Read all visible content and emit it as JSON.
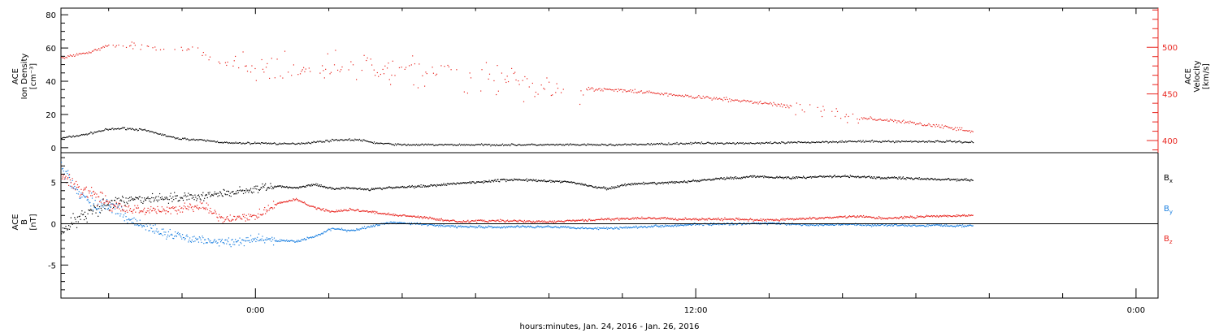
{
  "page": {
    "x_axis_title": "hours:minutes, Jan. 24, 2016 - Jan. 26, 2016",
    "x_tick_labels": [
      "0:00",
      "12:00",
      "0:00"
    ]
  },
  "colors": {
    "black": "#000000",
    "red": "#e8241e",
    "blue": "#1a7fe0"
  },
  "chart_data": [
    {
      "type": "scatter",
      "panel": "plasma",
      "x_unit": "hours from Jan. 24, 2016 0:00",
      "x_range": [
        18.7,
        48.6
      ],
      "data_end_x": 43.55,
      "left_axis": {
        "label_lines": [
          "ACE",
          "Ion Density",
          "[cm⁻³]"
        ],
        "ylim": [
          -3,
          84
        ],
        "major_ticks": [
          0,
          20,
          40,
          60,
          80
        ],
        "tick_labels": [
          "0",
          "20",
          "40",
          "60",
          "80"
        ]
      },
      "right_axis": {
        "label_lines": [
          "ACE",
          "Velocity",
          "[km/s]"
        ],
        "ylim": [
          387,
          542
        ],
        "major_ticks": [
          400,
          450,
          500
        ],
        "tick_labels": [
          "400",
          "450",
          "500"
        ]
      },
      "series": [
        {
          "axis": "left",
          "color": "black",
          "x": [
            18.7,
            19.3,
            19.9,
            20.4,
            20.9,
            21.3,
            21.8,
            22.4,
            22.9,
            23.3,
            23.8,
            24.3,
            24.8,
            25.3,
            25.8,
            26.2,
            26.8,
            27.3,
            28.0,
            29.0,
            30.0,
            31.0,
            32.0,
            33.0,
            34.0,
            35.0,
            36.0,
            37.0,
            38.0,
            39.0,
            40.0,
            41.0,
            42.0,
            43.0,
            43.55
          ],
          "y": [
            6,
            8,
            11,
            12,
            11,
            9,
            6,
            5,
            4,
            3,
            3,
            3,
            2.5,
            3,
            4,
            5,
            5,
            3,
            2,
            2,
            2,
            2,
            2,
            2,
            2,
            2.5,
            3,
            3,
            3,
            3.5,
            4,
            4,
            4,
            4,
            3.5
          ]
        },
        {
          "axis": "right",
          "color": "red",
          "x": [
            18.7,
            19.3,
            20.0,
            20.6,
            21.2,
            21.8,
            22.4,
            23.0,
            23.4,
            24.0,
            24.6,
            25.2,
            25.8,
            26.4,
            27.0,
            27.6,
            28.2,
            28.8,
            29.4,
            30.0,
            30.6,
            31.2,
            31.8,
            32.5,
            33.0,
            33.5,
            34.0,
            35.0,
            36.0,
            37.0,
            38.0,
            39.0,
            40.0,
            41.0,
            42.0,
            43.0,
            43.55
          ],
          "y": [
            489,
            494,
            502,
            503,
            500,
            497,
            496,
            484,
            480,
            477,
            474,
            476,
            478,
            480,
            481,
            477,
            476,
            473,
            471,
            470,
            467,
            463,
            460,
            459,
            456,
            455,
            454,
            451,
            447,
            444,
            440,
            435,
            427,
            423,
            419,
            414,
            410
          ]
        }
      ]
    },
    {
      "type": "scatter",
      "panel": "magnetic field",
      "x_unit": "hours from Jan. 24, 2016 0:00",
      "x_range": [
        18.7,
        48.6
      ],
      "data_end_x": 43.55,
      "left_axis": {
        "label_lines": [
          "ACE",
          "B",
          "[nT]"
        ],
        "ylim": [
          -9,
          8.6
        ],
        "major_ticks": [
          -5,
          0,
          5
        ],
        "tick_labels": [
          "-5",
          "0",
          "5"
        ]
      },
      "zero_line": true,
      "legend_position": "right",
      "series": [
        {
          "name": "Bx",
          "name_base": "B",
          "name_sub": "x",
          "color": "black",
          "x": [
            18.7,
            19.1,
            19.6,
            20.1,
            20.6,
            21.1,
            21.6,
            22.1,
            22.6,
            23.1,
            23.6,
            24.1,
            24.6,
            25.1,
            25.6,
            26.1,
            26.6,
            27.1,
            27.6,
            28.1,
            28.6,
            29.1,
            29.6,
            30.1,
            30.6,
            31.1,
            31.6,
            32.1,
            32.6,
            33.1,
            33.6,
            34.1,
            34.6,
            35.1,
            35.6,
            36.1,
            36.6,
            37.1,
            37.6,
            38.1,
            38.6,
            39.1,
            39.6,
            40.1,
            40.6,
            41.1,
            41.6,
            42.1,
            42.6,
            43.1,
            43.55
          ],
          "y": [
            -1,
            0.5,
            1.5,
            2.5,
            3.0,
            3.1,
            3.2,
            3.3,
            3.4,
            3.7,
            4.0,
            4.3,
            4.6,
            4.4,
            4.8,
            4.3,
            4.4,
            4.2,
            4.4,
            4.5,
            4.6,
            4.8,
            5.0,
            5.1,
            5.3,
            5.4,
            5.3,
            5.2,
            5.1,
            4.6,
            4.3,
            4.8,
            4.9,
            5.0,
            5.1,
            5.3,
            5.5,
            5.6,
            5.8,
            5.7,
            5.6,
            5.7,
            5.8,
            5.8,
            5.7,
            5.6,
            5.6,
            5.5,
            5.4,
            5.4,
            5.3
          ]
        },
        {
          "name": "By",
          "name_base": "B",
          "name_sub": "y",
          "color": "blue",
          "x": [
            18.7,
            19.1,
            19.6,
            20.1,
            20.6,
            21.1,
            21.6,
            22.1,
            22.6,
            23.1,
            23.6,
            24.1,
            24.6,
            25.1,
            25.6,
            26.1,
            26.6,
            27.1,
            27.6,
            28.1,
            28.6,
            29.1,
            29.6,
            30.1,
            30.6,
            31.1,
            31.6,
            32.1,
            32.6,
            33.1,
            33.6,
            34.1,
            34.6,
            35.1,
            35.6,
            36.1,
            36.6,
            37.1,
            37.6,
            38.1,
            38.6,
            39.1,
            39.6,
            40.1,
            40.6,
            41.1,
            41.6,
            42.1,
            42.6,
            43.1,
            43.55
          ],
          "y": [
            7,
            4,
            2.5,
            2,
            0.5,
            -0.5,
            -1.2,
            -1.6,
            -2.0,
            -2.2,
            -2.1,
            -1.8,
            -2.0,
            -2.1,
            -1.5,
            -0.5,
            -0.8,
            -0.3,
            0.2,
            0.1,
            0,
            -0.2,
            -0.3,
            -0.3,
            -0.4,
            -0.3,
            -0.3,
            -0.3,
            -0.4,
            -0.5,
            -0.5,
            -0.4,
            -0.3,
            -0.2,
            -0.1,
            0,
            0,
            0,
            0.1,
            0.1,
            0,
            -0.1,
            -0.1,
            0,
            -0.1,
            -0.1,
            -0.1,
            -0.2,
            -0.1,
            -0.2,
            -0.2
          ]
        },
        {
          "name": "Bz",
          "name_base": "B",
          "name_sub": "z",
          "color": "red",
          "x": [
            18.7,
            19.1,
            19.6,
            20.1,
            20.6,
            21.1,
            21.6,
            22.1,
            22.6,
            23.1,
            23.6,
            24.1,
            24.6,
            25.1,
            25.6,
            26.1,
            26.6,
            27.1,
            27.6,
            28.1,
            28.6,
            29.1,
            29.6,
            30.1,
            30.6,
            31.1,
            31.6,
            32.1,
            32.6,
            33.1,
            33.6,
            34.1,
            34.6,
            35.1,
            35.6,
            36.1,
            36.6,
            37.1,
            37.6,
            38.1,
            38.6,
            39.1,
            39.6,
            40.1,
            40.6,
            41.1,
            41.6,
            42.1,
            42.6,
            43.1,
            43.55
          ],
          "y": [
            6,
            4.5,
            3.5,
            2.2,
            1.8,
            1.6,
            1.7,
            2.0,
            2.2,
            0.5,
            0.8,
            1.2,
            2.5,
            3.0,
            2.0,
            1.5,
            1.8,
            1.5,
            1.2,
            1.0,
            0.8,
            0.5,
            0.3,
            0.4,
            0.4,
            0.4,
            0.3,
            0.3,
            0.4,
            0.5,
            0.6,
            0.7,
            0.7,
            0.7,
            0.6,
            0.6,
            0.6,
            0.6,
            0.5,
            0.5,
            0.6,
            0.7,
            0.8,
            0.9,
            0.9,
            0.7,
            0.8,
            0.9,
            1.0,
            1.0,
            1.1
          ]
        }
      ]
    }
  ]
}
